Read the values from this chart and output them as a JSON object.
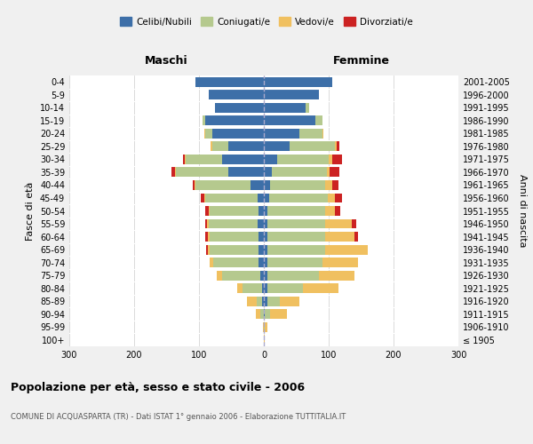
{
  "age_groups": [
    "100+",
    "95-99",
    "90-94",
    "85-89",
    "80-84",
    "75-79",
    "70-74",
    "65-69",
    "60-64",
    "55-59",
    "50-54",
    "45-49",
    "40-44",
    "35-39",
    "30-34",
    "25-29",
    "20-24",
    "15-19",
    "10-14",
    "5-9",
    "0-4"
  ],
  "birth_years": [
    "≤ 1905",
    "1906-1910",
    "1911-1915",
    "1916-1920",
    "1921-1925",
    "1926-1930",
    "1931-1935",
    "1936-1940",
    "1941-1945",
    "1946-1950",
    "1951-1955",
    "1956-1960",
    "1961-1965",
    "1966-1970",
    "1971-1975",
    "1976-1980",
    "1981-1985",
    "1986-1990",
    "1991-1995",
    "1996-2000",
    "2001-2005"
  ],
  "males": {
    "celibi": [
      0,
      0,
      0,
      3,
      3,
      5,
      8,
      8,
      8,
      10,
      8,
      10,
      20,
      55,
      65,
      55,
      80,
      90,
      75,
      85,
      105
    ],
    "coniugati": [
      0,
      0,
      5,
      8,
      30,
      60,
      70,
      75,
      75,
      75,
      75,
      80,
      85,
      80,
      55,
      25,
      10,
      5,
      0,
      0,
      0
    ],
    "vedovi": [
      0,
      1,
      8,
      15,
      8,
      8,
      5,
      3,
      3,
      3,
      2,
      2,
      2,
      2,
      2,
      2,
      2,
      0,
      0,
      0,
      0
    ],
    "divorziati": [
      0,
      0,
      0,
      0,
      0,
      0,
      0,
      3,
      5,
      3,
      5,
      5,
      3,
      5,
      3,
      0,
      0,
      0,
      0,
      0,
      0
    ]
  },
  "females": {
    "nubili": [
      0,
      0,
      2,
      5,
      5,
      5,
      5,
      5,
      5,
      5,
      5,
      8,
      10,
      12,
      20,
      40,
      55,
      80,
      65,
      85,
      105
    ],
    "coniugate": [
      0,
      2,
      8,
      20,
      55,
      80,
      85,
      90,
      90,
      90,
      90,
      90,
      85,
      85,
      80,
      70,
      35,
      10,
      5,
      0,
      0
    ],
    "vedove": [
      2,
      3,
      25,
      30,
      55,
      55,
      55,
      65,
      45,
      40,
      15,
      12,
      10,
      5,
      5,
      2,
      2,
      0,
      0,
      0,
      0
    ],
    "divorziate": [
      0,
      0,
      0,
      0,
      0,
      0,
      0,
      0,
      5,
      8,
      8,
      10,
      10,
      15,
      15,
      5,
      0,
      0,
      0,
      0,
      0
    ]
  },
  "colors": {
    "celibi_nubili": "#3d6fa8",
    "coniugati": "#b5c98e",
    "vedovi": "#f0c060",
    "divorziati": "#cc2222"
  },
  "xlim": 300,
  "title": "Popolazione per età, sesso e stato civile - 2006",
  "subtitle": "COMUNE DI ACQUASPARTA (TR) - Dati ISTAT 1° gennaio 2006 - Elaborazione TUTTITALIA.IT",
  "xlabel_left": "Maschi",
  "xlabel_right": "Femmine",
  "ylabel_left": "Fasce di età",
  "ylabel_right": "Anni di nascita",
  "legend_labels": [
    "Celibi/Nubili",
    "Coniugati/e",
    "Vedovi/e",
    "Divorziati/e"
  ],
  "bg_color": "#f0f0f0",
  "plot_bg_color": "#ffffff"
}
